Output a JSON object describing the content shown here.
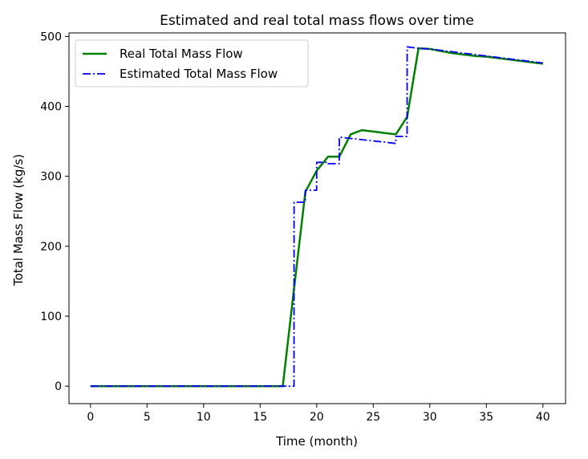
{
  "chart_data": {
    "type": "line",
    "title": "Estimated and real total mass flows over time",
    "xlabel": "Time (month)",
    "ylabel": "Total Mass Flow (kg/s)",
    "xlim": [
      -1.9,
      42
    ],
    "ylim": [
      -25,
      505
    ],
    "xticks": [
      0,
      5,
      10,
      15,
      20,
      25,
      30,
      35,
      40
    ],
    "yticks": [
      0,
      100,
      200,
      300,
      400,
      500
    ],
    "grid": false,
    "legend_position": "upper-left",
    "series": [
      {
        "name": "Real Total Mass Flow",
        "color": "#008000",
        "style": "solid",
        "x": [
          0,
          1,
          2,
          3,
          4,
          5,
          6,
          7,
          8,
          9,
          10,
          11,
          12,
          13,
          14,
          15,
          16,
          17,
          18,
          19,
          20,
          21,
          22,
          23,
          24,
          25,
          26,
          27,
          28,
          29,
          30,
          31,
          32,
          33,
          34,
          35,
          36,
          37,
          38,
          39,
          40
        ],
        "y": [
          0,
          0,
          0,
          0,
          0,
          0,
          0,
          0,
          0,
          0,
          0,
          0,
          0,
          0,
          0,
          0,
          0,
          0,
          140,
          278,
          308,
          328,
          328,
          360,
          366,
          364,
          362,
          360,
          385,
          483,
          482,
          479,
          476,
          474,
          472,
          471,
          469,
          467,
          465,
          463,
          461
        ]
      },
      {
        "name": "Estimated Total Mass Flow",
        "color": "#0000ff",
        "style": "dashdot",
        "x": [
          0,
          1,
          2,
          3,
          4,
          5,
          6,
          7,
          8,
          9,
          10,
          11,
          12,
          13,
          14,
          15,
          16,
          17,
          17.99,
          18,
          18.99,
          19,
          19.99,
          20,
          20.99,
          21,
          21.99,
          22,
          26.99,
          27,
          27.99,
          28,
          29,
          30,
          31,
          32,
          33,
          34,
          35,
          36,
          37,
          38,
          39,
          40
        ],
        "y": [
          0,
          0,
          0,
          0,
          0,
          0,
          0,
          0,
          0,
          0,
          0,
          0,
          0,
          0,
          0,
          0,
          0,
          0,
          0,
          263,
          263,
          280,
          280,
          320,
          320,
          318,
          318,
          356,
          347,
          357,
          357,
          485,
          483,
          482,
          480,
          478,
          476,
          474,
          472,
          470,
          468,
          466,
          464,
          462
        ]
      }
    ]
  }
}
